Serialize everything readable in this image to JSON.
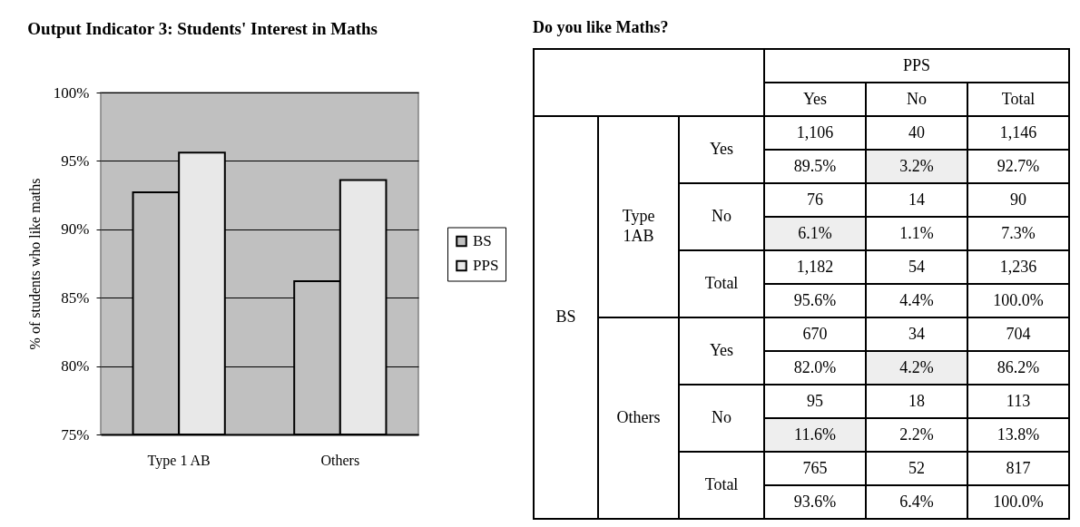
{
  "chart_data": [
    {
      "type": "bar",
      "title": "Output Indicator 3: Students' Interest in Maths",
      "ylabel": "% of students who like maths",
      "categories": [
        "Type 1 AB",
        "Others"
      ],
      "series": [
        {
          "name": "BS",
          "color": "#c0c0c0",
          "values": [
            92.7,
            86.2
          ]
        },
        {
          "name": "PPS",
          "color": "#e8e8e8",
          "values": [
            95.6,
            93.6
          ]
        }
      ],
      "ylim": [
        75,
        100
      ],
      "yticks": [
        {
          "value": 75,
          "label": "75%"
        },
        {
          "value": 80,
          "label": "80%"
        },
        {
          "value": 85,
          "label": "85%"
        },
        {
          "value": 90,
          "label": "90%"
        },
        {
          "value": 95,
          "label": "95%"
        },
        {
          "value": 100,
          "label": "100%"
        }
      ],
      "grid": "y",
      "legend": "right"
    },
    {
      "type": "heatmap",
      "title": "Do you like Maths?",
      "xlabel": "PPS",
      "ylabel": "BS",
      "categories": [
        "Yes",
        "No",
        "Total"
      ],
      "y_categories": [
        "Yes",
        null,
        "No",
        null,
        "Total",
        null,
        "Yes",
        null,
        "No",
        null,
        "Total",
        null
      ],
      "y2_categories": [
        null,
        null,
        "Type 1AB",
        null,
        null,
        null,
        null,
        null,
        "Others",
        null,
        null,
        null
      ],
      "cells": [
        [
          1106,
          40,
          1146
        ],
        [
          89.5,
          3.2,
          92.7
        ],
        [
          76,
          14,
          90
        ],
        [
          6.1,
          1.1,
          7.3
        ],
        [
          1182,
          54,
          1236
        ],
        [
          95.6,
          4.4,
          100.0
        ],
        [
          670,
          34,
          704
        ],
        [
          82.0,
          4.2,
          86.2
        ],
        [
          95,
          18,
          113
        ],
        [
          11.6,
          2.2,
          13.8
        ],
        [
          765,
          52,
          817
        ],
        [
          93.6,
          6.4,
          100.0
        ]
      ],
      "cell_labels": [
        [
          "1,106",
          "40",
          "1,146"
        ],
        [
          "89.5%",
          "3.2%",
          "92.7%"
        ],
        [
          "76",
          "14",
          "90"
        ],
        [
          "6.1%",
          "1.1%",
          "7.3%"
        ],
        [
          "1,182",
          "54",
          "1,236"
        ],
        [
          "95.6%",
          "4.4%",
          "100.0%"
        ],
        [
          "670",
          "34",
          "704"
        ],
        [
          "82.0%",
          "4.2%",
          "86.2%"
        ],
        [
          "95",
          "18",
          "113"
        ],
        [
          "11.6%",
          "2.2%",
          "13.8%"
        ],
        [
          "765",
          "52",
          "817"
        ],
        [
          "93.6%",
          "6.4%",
          "100.0%"
        ]
      ],
      "colors": [
        [
          null,
          null,
          null
        ],
        [
          null,
          "#eeeeee",
          null
        ],
        [
          null,
          null,
          null
        ],
        [
          "#eeeeee",
          null,
          null
        ],
        [
          null,
          null,
          null
        ],
        [
          null,
          null,
          null
        ],
        [
          null,
          null,
          null
        ],
        [
          null,
          "#eeeeee",
          null
        ],
        [
          null,
          null,
          null
        ],
        [
          "#eeeeee",
          null,
          null
        ],
        [
          null,
          null,
          null
        ],
        [
          null,
          null,
          null
        ]
      ]
    }
  ]
}
